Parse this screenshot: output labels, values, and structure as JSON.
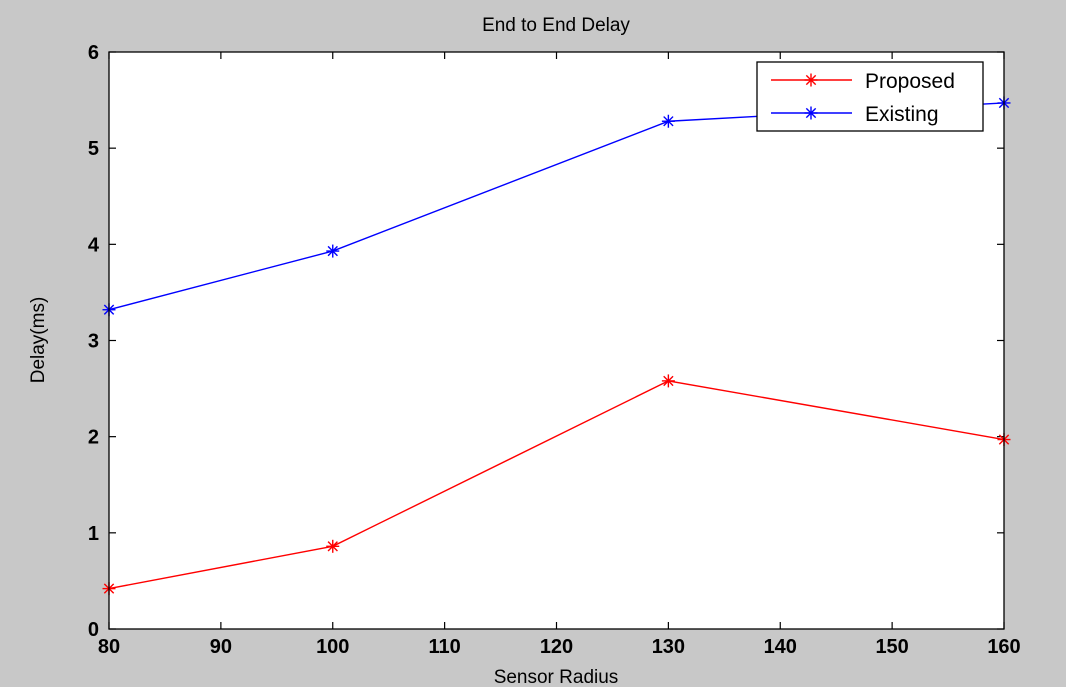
{
  "chart_data": {
    "type": "line",
    "title": "End to End Delay",
    "xlabel": "Sensor Radius",
    "ylabel": "Delay(ms)",
    "xlim": [
      80,
      160
    ],
    "ylim": [
      0,
      6
    ],
    "xticks": [
      80,
      90,
      100,
      110,
      120,
      130,
      140,
      150,
      160
    ],
    "yticks": [
      0,
      1,
      2,
      3,
      4,
      5,
      6
    ],
    "x": [
      80,
      100,
      130,
      160
    ],
    "series": [
      {
        "name": "Proposed",
        "color": "#ff0000",
        "marker": "asterisk",
        "values": [
          0.42,
          0.86,
          2.58,
          1.97
        ]
      },
      {
        "name": "Existing",
        "color": "#0000ff",
        "marker": "asterisk",
        "values": [
          3.32,
          3.93,
          5.28,
          5.47
        ]
      }
    ],
    "grid": false,
    "legend_position": "top-right",
    "background": "#c8c8c8",
    "plot_background": "#ffffff"
  }
}
